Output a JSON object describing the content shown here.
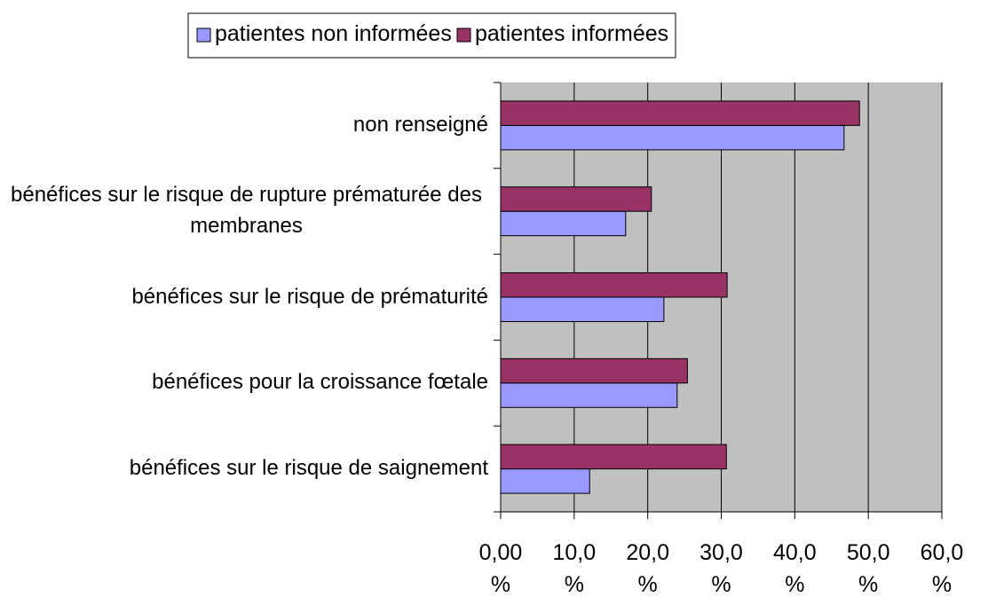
{
  "chart_data": {
    "type": "hbar",
    "categories": [
      "non renseigné",
      "bénéfices sur le risque de rupture prématurée des membranes",
      "bénéfices sur le risque de prématurité",
      "bénéfices pour la croissance fœtale",
      "bénéfices sur le risque de saignement"
    ],
    "series": [
      {
        "name": "patientes non informées",
        "color": "#9999ff",
        "values": [
          46.7,
          17.0,
          22.2,
          24.0,
          12.1
        ]
      },
      {
        "name": "patientes informées",
        "color": "#993366",
        "values": [
          48.8,
          20.5,
          30.8,
          25.4,
          30.7
        ]
      }
    ],
    "xlim": [
      0,
      60
    ],
    "xticks": [
      {
        "value": 0,
        "label": "0,00 %"
      },
      {
        "value": 10,
        "label": "10,0 %"
      },
      {
        "value": 20,
        "label": "20,0 %"
      },
      {
        "value": 30,
        "label": "30,0 %"
      },
      {
        "value": 40,
        "label": "40,0 %"
      },
      {
        "value": 50,
        "label": "50,0 %"
      },
      {
        "value": 60,
        "label": "60,0 %"
      }
    ],
    "grid": true,
    "legend": "top"
  }
}
